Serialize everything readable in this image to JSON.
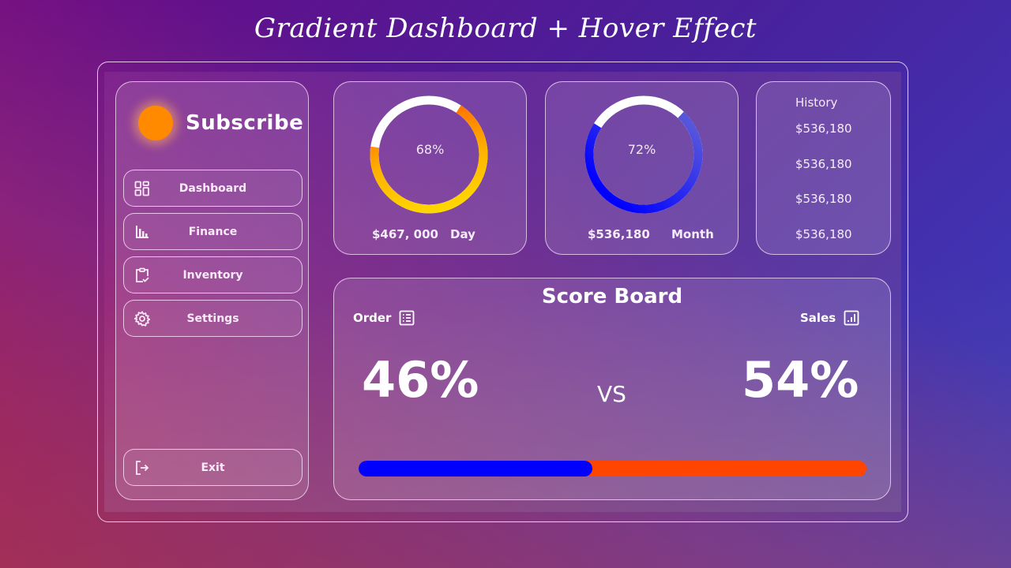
{
  "banner": {
    "title": "Gradient Dashboard + Hover Effect"
  },
  "sidebar": {
    "brand": {
      "label": "Subscribe",
      "dot_color": "#ff8a00"
    },
    "items": [
      {
        "label": "Dashboard",
        "icon": "dashboard-grid-icon"
      },
      {
        "label": "Finance",
        "icon": "bar-chart-icon"
      },
      {
        "label": "Inventory",
        "icon": "clipboard-check-icon"
      },
      {
        "label": "Settings",
        "icon": "gear-icon"
      }
    ],
    "exit": {
      "label": "Exit",
      "icon": "logout-icon"
    }
  },
  "cards": {
    "day": {
      "percent": "68%",
      "percent_value": 68,
      "amount": "$467, 000",
      "period": "Day",
      "colors": [
        "#ffe600",
        "#ff4500"
      ]
    },
    "month": {
      "percent": "72%",
      "percent_value": 72,
      "amount": "$536,180",
      "period": "Month",
      "colors": [
        "#0000ff",
        "#5a5ae0"
      ]
    }
  },
  "history": {
    "title": "History",
    "items": [
      "$536,180",
      "$536,180",
      "$536,180",
      "$536,180"
    ]
  },
  "scoreboard": {
    "title": "Score Board",
    "left": {
      "label": "Order",
      "value": "46%",
      "icon": "list-icon",
      "color": "#0000ff"
    },
    "vs": "VS",
    "right": {
      "label": "Sales",
      "value": "54%",
      "icon": "chart-box-icon",
      "color": "#ff4500"
    },
    "bar_split_percent": 46
  }
}
